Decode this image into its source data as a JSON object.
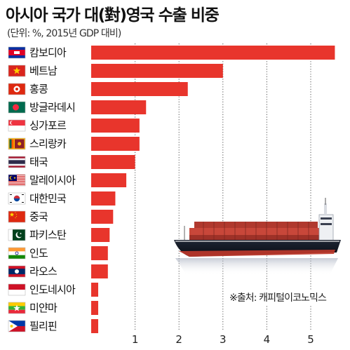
{
  "chart_data": {
    "type": "bar",
    "orientation": "horizontal",
    "title": "아시아 국가 대(對)영국 수출 비중",
    "subtitle": "(단위: %, 2015년 GDP 대비)",
    "categories": [
      "캄보디아",
      "베트남",
      "홍콩",
      "방글라데시",
      "싱가포르",
      "스리랑카",
      "태국",
      "말레이시아",
      "대한민국",
      "중국",
      "파키스탄",
      "인도",
      "라오스",
      "인도네시아",
      "미얀마",
      "필리핀"
    ],
    "values": [
      5.55,
      3.0,
      2.2,
      1.25,
      1.1,
      1.1,
      1.0,
      0.8,
      0.55,
      0.5,
      0.42,
      0.38,
      0.38,
      0.16,
      0.16,
      0.16
    ],
    "xlim": [
      0,
      5.6
    ],
    "xticks": [
      1,
      2,
      3,
      4,
      5
    ],
    "grid": "vertical dotted",
    "bar_color": "#e8352c",
    "source": "※출처: 캐피털이코노믹스",
    "flags": [
      "cambodia-flag-icon",
      "vietnam-flag-icon",
      "hong-kong-flag-icon",
      "bangladesh-flag-icon",
      "singapore-flag-icon",
      "sri-lanka-flag-icon",
      "thailand-flag-icon",
      "malaysia-flag-icon",
      "south-korea-flag-icon",
      "china-flag-icon",
      "pakistan-flag-icon",
      "india-flag-icon",
      "laos-flag-icon",
      "indonesia-flag-icon",
      "myanmar-flag-icon",
      "philippines-flag-icon"
    ],
    "illustration": "container-ship-illustration"
  }
}
